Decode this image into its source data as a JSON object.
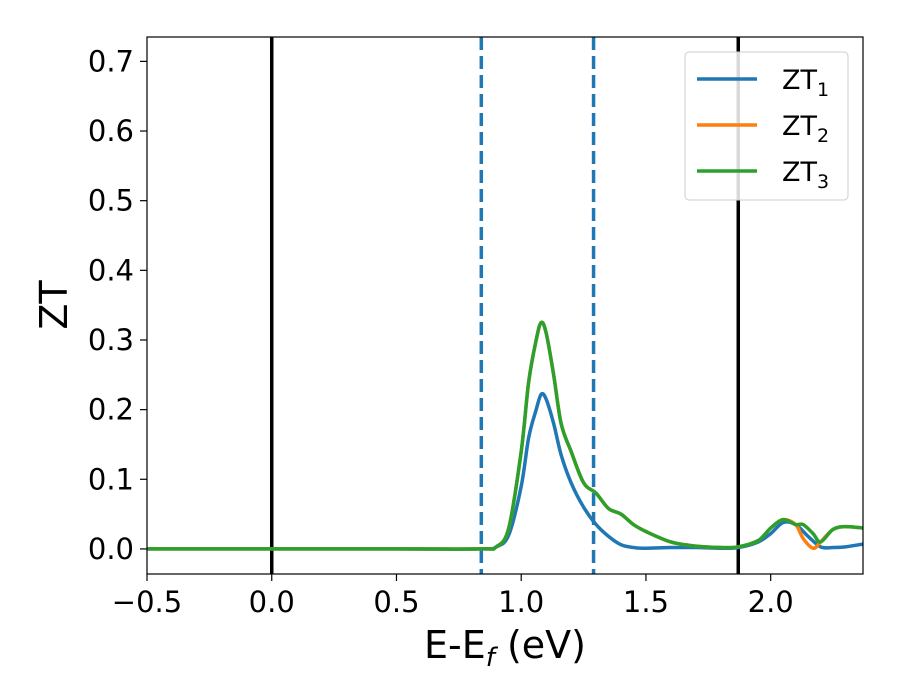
{
  "chart_data": {
    "type": "line",
    "xlabel_main": "E-E",
    "xlabel_sub": "f",
    "xlabel_units": " (eV)",
    "ylabel": "ZT",
    "xlim": [
      -0.5,
      2.37
    ],
    "ylim": [
      -0.036,
      0.735
    ],
    "xticks": [
      -0.5,
      0.0,
      0.5,
      1.0,
      1.5,
      2.0
    ],
    "xtick_labels": [
      "−0.5",
      "0.0",
      "0.5",
      "1.0",
      "1.5",
      "2.0"
    ],
    "yticks": [
      0.0,
      0.1,
      0.2,
      0.3,
      0.4,
      0.5,
      0.6,
      0.7
    ],
    "ytick_labels": [
      "0.0",
      "0.1",
      "0.2",
      "0.3",
      "0.4",
      "0.5",
      "0.6",
      "0.7"
    ],
    "grid": false,
    "legend_position": "top-right",
    "vertical_lines": [
      {
        "x": 0.0,
        "style": "solid",
        "color": "#000000"
      },
      {
        "x": 1.87,
        "style": "solid",
        "color": "#000000"
      },
      {
        "x": 0.84,
        "style": "dashed",
        "color": "#1f77b4"
      },
      {
        "x": 1.29,
        "style": "dashed",
        "color": "#1f77b4"
      }
    ],
    "series": [
      {
        "name": "ZT",
        "subscript": "1",
        "color": "#1f77b4",
        "x": [
          -0.5,
          0.0,
          0.5,
          0.84,
          0.9,
          0.95,
          1.0,
          1.03,
          1.06,
          1.08,
          1.1,
          1.13,
          1.16,
          1.2,
          1.25,
          1.3,
          1.35,
          1.4,
          1.45,
          1.5,
          1.6,
          1.7,
          1.8,
          1.87,
          1.95,
          2.0,
          2.05,
          2.1,
          2.15,
          2.2,
          2.25,
          2.3,
          2.37
        ],
        "y": [
          0.0,
          0.0,
          0.0,
          0.0,
          0.003,
          0.02,
          0.09,
          0.16,
          0.2,
          0.222,
          0.215,
          0.18,
          0.135,
          0.095,
          0.06,
          0.035,
          0.018,
          0.006,
          0.002,
          0.001,
          0.002,
          0.002,
          0.001,
          0.002,
          0.01,
          0.022,
          0.038,
          0.035,
          0.018,
          0.003,
          0.002,
          0.003,
          0.007
        ]
      },
      {
        "name": "ZT",
        "subscript": "2",
        "color": "#ff7f0e",
        "x": [
          -0.5,
          0.0,
          0.5,
          0.84,
          0.9,
          0.95,
          1.0,
          1.03,
          1.06,
          1.08,
          1.1,
          1.13,
          1.16,
          1.2,
          1.25,
          1.3,
          1.35,
          1.4,
          1.45,
          1.5,
          1.6,
          1.7,
          1.8,
          1.87,
          1.95,
          2.0,
          2.05,
          2.1,
          2.13,
          2.17,
          2.2,
          2.25,
          2.3,
          2.37
        ],
        "y": [
          0.0,
          0.0,
          0.0,
          0.0,
          0.003,
          0.03,
          0.14,
          0.24,
          0.3,
          0.325,
          0.31,
          0.25,
          0.18,
          0.14,
          0.095,
          0.08,
          0.058,
          0.05,
          0.035,
          0.025,
          0.01,
          0.004,
          0.002,
          0.003,
          0.012,
          0.03,
          0.042,
          0.035,
          0.015,
          0.001,
          0.01,
          0.028,
          0.032,
          0.03
        ]
      },
      {
        "name": "ZT",
        "subscript": "3",
        "color": "#2ca02c",
        "x": [
          -0.5,
          0.0,
          0.5,
          0.84,
          0.9,
          0.95,
          1.0,
          1.03,
          1.06,
          1.08,
          1.1,
          1.13,
          1.16,
          1.2,
          1.25,
          1.3,
          1.35,
          1.4,
          1.45,
          1.5,
          1.6,
          1.7,
          1.8,
          1.87,
          1.95,
          2.0,
          2.05,
          2.1,
          2.13,
          2.17,
          2.2,
          2.25,
          2.3,
          2.37
        ],
        "y": [
          0.0,
          0.0,
          0.0,
          0.0,
          0.003,
          0.03,
          0.14,
          0.24,
          0.3,
          0.325,
          0.31,
          0.25,
          0.18,
          0.14,
          0.095,
          0.08,
          0.058,
          0.05,
          0.035,
          0.025,
          0.01,
          0.004,
          0.002,
          0.003,
          0.012,
          0.03,
          0.042,
          0.035,
          0.035,
          0.022,
          0.01,
          0.028,
          0.032,
          0.03
        ]
      }
    ]
  }
}
